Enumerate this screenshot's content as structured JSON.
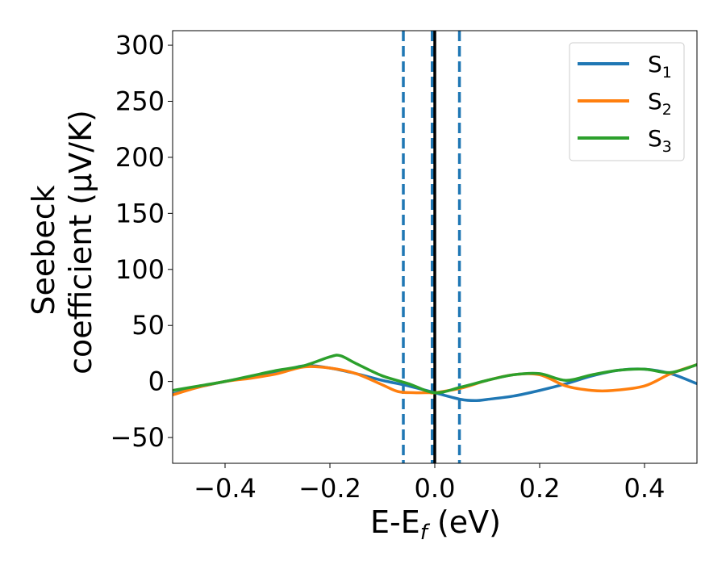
{
  "chart_data": {
    "type": "line",
    "title": "",
    "xlabel": "E-E",
    "xlabel_subscript": "f",
    "xlabel_unit": " (eV)",
    "ylabel_line1": "Seebeck",
    "ylabel_line2": "coefficient  (μV/K)",
    "xlim": [
      -0.5,
      0.5
    ],
    "ylim": [
      -73,
      313
    ],
    "xticks": [
      -0.4,
      -0.2,
      0.0,
      0.2,
      0.4
    ],
    "xtick_labels": [
      "−0.4",
      "−0.2",
      "0.0",
      "0.2",
      "0.4"
    ],
    "yticks": [
      -50,
      0,
      50,
      100,
      150,
      200,
      250,
      300
    ],
    "ytick_labels": [
      "−50",
      "0",
      "50",
      "100",
      "150",
      "200",
      "250",
      "300"
    ],
    "grid": false,
    "legend_position": "top-right",
    "vertical_lines": [
      {
        "x": -0.06,
        "style": "dashed",
        "color": "#1f77b4"
      },
      {
        "x": -0.005,
        "style": "dashed",
        "color": "#1f77b4"
      },
      {
        "x": 0.0,
        "style": "solid",
        "color": "#000000"
      },
      {
        "x": 0.047,
        "style": "dashed",
        "color": "#1f77b4"
      }
    ],
    "series": [
      {
        "name": "S",
        "subscript": "1",
        "color": "#1f77b4",
        "x": [
          -0.5,
          -0.45,
          -0.4,
          -0.35,
          -0.3,
          -0.25,
          -0.2,
          -0.15,
          -0.1,
          -0.05,
          0.0,
          0.05,
          0.08,
          0.1,
          0.15,
          0.2,
          0.25,
          0.3,
          0.35,
          0.4,
          0.45,
          0.5
        ],
        "y": [
          -11,
          -5,
          0,
          4,
          8,
          14,
          12,
          7,
          1,
          -4,
          -10,
          -16,
          -17,
          -16,
          -13,
          -8,
          -2,
          5,
          10,
          11,
          7,
          -2
        ]
      },
      {
        "name": "S",
        "subscript": "2",
        "color": "#ff7f0e",
        "x": [
          -0.5,
          -0.45,
          -0.4,
          -0.35,
          -0.3,
          -0.25,
          -0.2,
          -0.15,
          -0.1,
          -0.07,
          -0.04,
          -0.01,
          0.0,
          0.05,
          0.1,
          0.15,
          0.2,
          0.25,
          0.3,
          0.34,
          0.4,
          0.45,
          0.5
        ],
        "y": [
          -12,
          -5,
          0,
          3,
          7,
          13,
          12,
          7,
          -3,
          -9,
          -10,
          -10,
          -10,
          -6,
          1,
          6,
          6,
          -4,
          -8,
          -8,
          -4,
          7,
          15
        ]
      },
      {
        "name": "S",
        "subscript": "3",
        "color": "#2ca02c",
        "x": [
          -0.5,
          -0.45,
          -0.4,
          -0.35,
          -0.3,
          -0.25,
          -0.2,
          -0.18,
          -0.15,
          -0.1,
          -0.05,
          0.0,
          0.05,
          0.1,
          0.15,
          0.2,
          0.25,
          0.3,
          0.35,
          0.4,
          0.45,
          0.5
        ],
        "y": [
          -8,
          -4,
          0,
          5,
          10,
          14,
          22,
          23,
          16,
          5,
          -2,
          -10,
          -5,
          1,
          6,
          7,
          1,
          6,
          10,
          11,
          8,
          15
        ]
      }
    ]
  }
}
